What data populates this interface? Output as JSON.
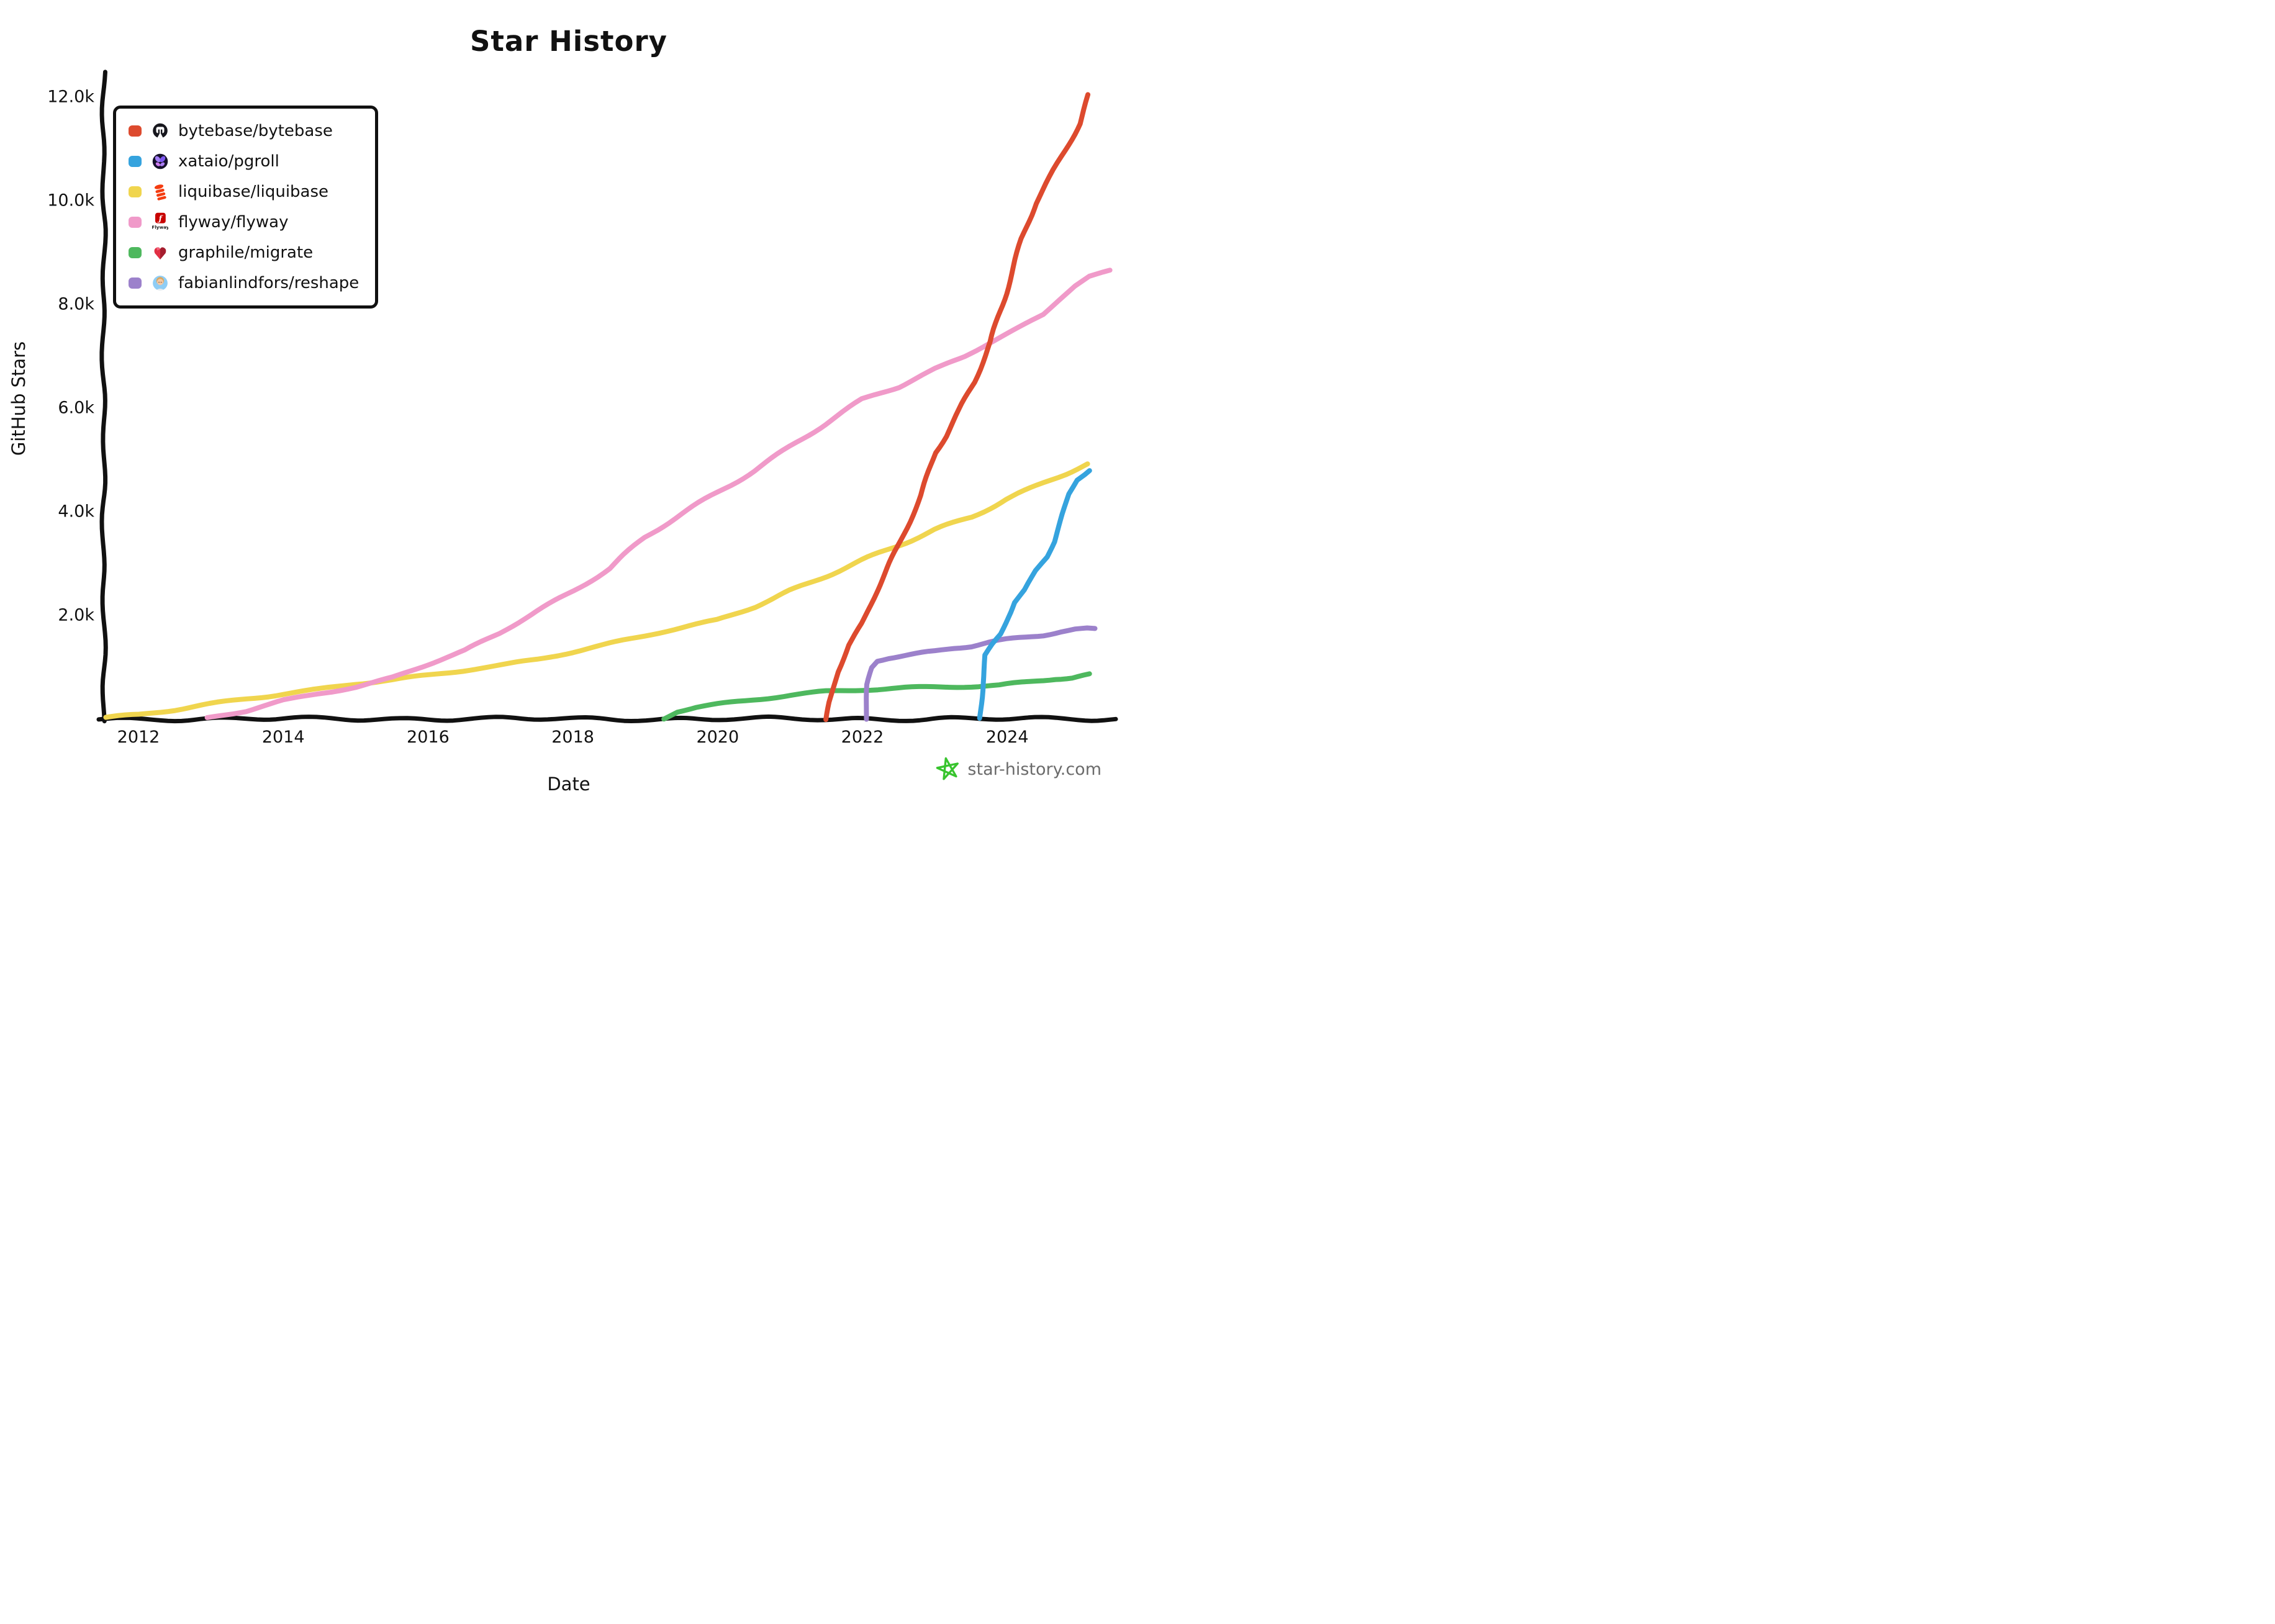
{
  "title": "Star History",
  "y_axis": {
    "label": "GitHub Stars",
    "ticks": [
      {
        "label": "2.0k",
        "value": 2000
      },
      {
        "label": "4.0k",
        "value": 4000
      },
      {
        "label": "6.0k",
        "value": 6000
      },
      {
        "label": "8.0k",
        "value": 8000
      },
      {
        "label": "10.0k",
        "value": 10000
      },
      {
        "label": "12.0k",
        "value": 12000
      }
    ]
  },
  "x_axis": {
    "label": "Date",
    "ticks": [
      {
        "label": "2012",
        "value": 2012
      },
      {
        "label": "2014",
        "value": 2014
      },
      {
        "label": "2016",
        "value": 2016
      },
      {
        "label": "2018",
        "value": 2018
      },
      {
        "label": "2020",
        "value": 2020
      },
      {
        "label": "2022",
        "value": 2022
      },
      {
        "label": "2024",
        "value": 2024
      }
    ]
  },
  "legend": [
    {
      "name": "bytebase/bytebase",
      "key": "bytebase",
      "icon": "bytebase-icon",
      "color": "#dd4a2e"
    },
    {
      "name": "xataio/pgroll",
      "key": "pgroll",
      "icon": "xata-butterfly-icon",
      "color": "#35a3de"
    },
    {
      "name": "liquibase/liquibase",
      "key": "liquibase",
      "icon": "liquibase-icon",
      "color": "#f0d54e"
    },
    {
      "name": "flyway/flyway",
      "key": "flyway",
      "icon": "flyway-icon",
      "color": "#f09ac9"
    },
    {
      "name": "graphile/migrate",
      "key": "graphile",
      "icon": "graphile-heart-icon",
      "color": "#4eb85e"
    },
    {
      "name": "fabianlindfors/reshape",
      "key": "reshape",
      "icon": "avatar-icon",
      "color": "#9c81cb"
    }
  ],
  "footer": {
    "brand": "star-history.com",
    "star_color": "#38c42e",
    "text_color": "#6b6b6b"
  },
  "chart_data": {
    "type": "line",
    "title": "Star History",
    "xlabel": "Date",
    "ylabel": "GitHub Stars",
    "x_range": [
      2011.5,
      2025.5
    ],
    "ylim": [
      0,
      12400
    ],
    "grid": false,
    "legend_position": "top-left",
    "background": "#ffffff",
    "series": [
      {
        "name": "liquibase/liquibase",
        "key": "liquibase",
        "color": "#f0d54e",
        "points": [
          [
            2011.55,
            30
          ],
          [
            2012,
            70
          ],
          [
            2012.5,
            170
          ],
          [
            2013,
            280
          ],
          [
            2013.5,
            390
          ],
          [
            2014,
            490
          ],
          [
            2014.5,
            580
          ],
          [
            2015,
            680
          ],
          [
            2015.5,
            745
          ],
          [
            2016,
            830
          ],
          [
            2016.5,
            930
          ],
          [
            2017,
            1035
          ],
          [
            2017.5,
            1160
          ],
          [
            2018,
            1300
          ],
          [
            2018.5,
            1450
          ],
          [
            2019,
            1600
          ],
          [
            2019.5,
            1750
          ],
          [
            2020,
            1900
          ],
          [
            2020.5,
            2170
          ],
          [
            2021,
            2480
          ],
          [
            2021.5,
            2760
          ],
          [
            2022,
            3050
          ],
          [
            2022.5,
            3340
          ],
          [
            2023,
            3650
          ],
          [
            2023.5,
            3900
          ],
          [
            2024,
            4250
          ],
          [
            2024.5,
            4550
          ],
          [
            2024.8,
            4720
          ],
          [
            2025.12,
            4920
          ]
        ]
      },
      {
        "name": "flyway/flyway",
        "key": "flyway",
        "color": "#f09ac9",
        "points": [
          [
            2012.93,
            0
          ],
          [
            2013.5,
            150
          ],
          [
            2014,
            350
          ],
          [
            2014.5,
            500
          ],
          [
            2015,
            620
          ],
          [
            2015.5,
            800
          ],
          [
            2016,
            1050
          ],
          [
            2016.5,
            1300
          ],
          [
            2017,
            1660
          ],
          [
            2017.5,
            2080
          ],
          [
            2018,
            2480
          ],
          [
            2018.5,
            2900
          ],
          [
            2019,
            3500
          ],
          [
            2019.5,
            3940
          ],
          [
            2020,
            4370
          ],
          [
            2020.5,
            4800
          ],
          [
            2021,
            5260
          ],
          [
            2021.5,
            5700
          ],
          [
            2022,
            6150
          ],
          [
            2022.5,
            6400
          ],
          [
            2023,
            6750
          ],
          [
            2023.4,
            7000
          ],
          [
            2023.77,
            7270
          ],
          [
            2024,
            7430
          ],
          [
            2024.5,
            7800
          ],
          [
            2024.94,
            8350
          ],
          [
            2025.12,
            8520
          ],
          [
            2025.4,
            8630
          ]
        ]
      },
      {
        "name": "graphile/migrate",
        "key": "graphile",
        "color": "#4eb85e",
        "points": [
          [
            2019.27,
            0
          ],
          [
            2019.45,
            140
          ],
          [
            2019.7,
            220
          ],
          [
            2020,
            280
          ],
          [
            2020.5,
            380
          ],
          [
            2021,
            470
          ],
          [
            2021.5,
            530
          ],
          [
            2022,
            560
          ],
          [
            2022.5,
            580
          ],
          [
            2023,
            610
          ],
          [
            2023.5,
            630
          ],
          [
            2023.9,
            650
          ],
          [
            2024.1,
            690
          ],
          [
            2024.4,
            740
          ],
          [
            2024.65,
            785
          ],
          [
            2024.9,
            795
          ],
          [
            2025.15,
            850
          ]
        ]
      },
      {
        "name": "fabianlindfors/reshape",
        "key": "reshape",
        "color": "#9c81cb",
        "points": [
          [
            2022.05,
            0
          ],
          [
            2022.08,
            650
          ],
          [
            2022.13,
            1000
          ],
          [
            2022.2,
            1130
          ],
          [
            2022.35,
            1190
          ],
          [
            2022.5,
            1220
          ],
          [
            2022.75,
            1260
          ],
          [
            2023,
            1300
          ],
          [
            2023.25,
            1360
          ],
          [
            2023.5,
            1400
          ],
          [
            2023.75,
            1465
          ],
          [
            2024,
            1520
          ],
          [
            2024.25,
            1570
          ],
          [
            2024.5,
            1620
          ],
          [
            2024.75,
            1690
          ],
          [
            2024.95,
            1735
          ],
          [
            2025.1,
            1745
          ],
          [
            2025.2,
            1735
          ]
        ]
      },
      {
        "name": "xataio/pgroll",
        "key": "pgroll",
        "color": "#35a3de",
        "points": [
          [
            2023.63,
            0
          ],
          [
            2023.66,
            700
          ],
          [
            2023.7,
            1250
          ],
          [
            2023.8,
            1450
          ],
          [
            2023.9,
            1620
          ],
          [
            2024,
            1950
          ],
          [
            2024.1,
            2250
          ],
          [
            2024.25,
            2500
          ],
          [
            2024.4,
            2850
          ],
          [
            2024.55,
            3100
          ],
          [
            2024.65,
            3400
          ],
          [
            2024.75,
            3850
          ],
          [
            2024.85,
            4350
          ],
          [
            2024.95,
            4600
          ],
          [
            2025.05,
            4700
          ],
          [
            2025.12,
            4780
          ]
        ]
      },
      {
        "name": "bytebase/bytebase",
        "key": "bytebase",
        "color": "#dd4a2e",
        "points": [
          [
            2021.5,
            0
          ],
          [
            2021.55,
            350
          ],
          [
            2021.65,
            900
          ],
          [
            2021.8,
            1400
          ],
          [
            2022,
            1850
          ],
          [
            2022.2,
            2450
          ],
          [
            2022.5,
            3350
          ],
          [
            2022.8,
            4300
          ],
          [
            2023,
            5150
          ],
          [
            2023.15,
            5450
          ],
          [
            2023.35,
            5950
          ],
          [
            2023.55,
            6500
          ],
          [
            2023.77,
            7270
          ],
          [
            2024,
            8350
          ],
          [
            2024.2,
            9250
          ],
          [
            2024.4,
            9950
          ],
          [
            2024.6,
            10450
          ],
          [
            2024.8,
            10950
          ],
          [
            2025,
            11500
          ],
          [
            2025.12,
            12050
          ]
        ]
      }
    ]
  }
}
